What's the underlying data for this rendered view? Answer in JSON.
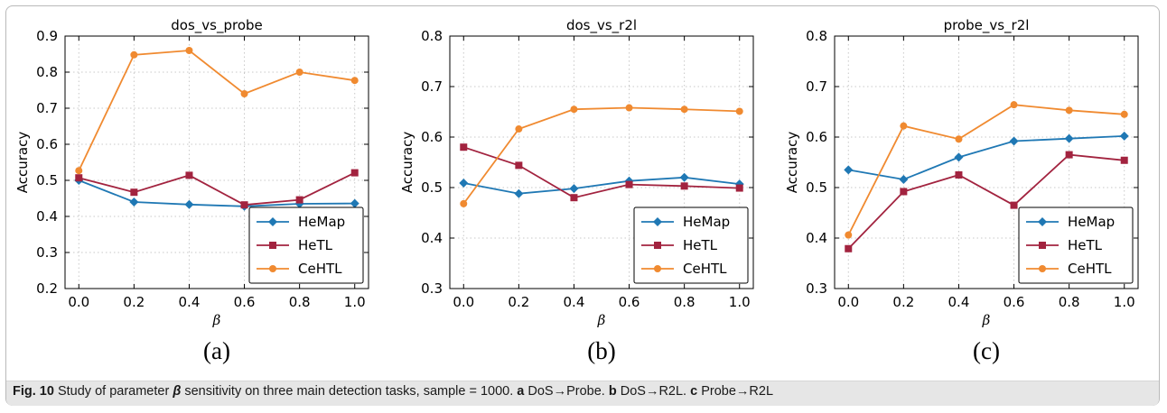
{
  "colors": {
    "HeMap": "#1f78b4",
    "HeTL": "#a2233f",
    "CeHTL": "#f08a30"
  },
  "caption": {
    "fig": "Fig. 10",
    "text_1": " Study of parameter ",
    "symbol": "β",
    "text_2": " sensitivity on three main detection tasks, sample = 1000. ",
    "a": "a",
    "a_text": " DoS→Probe. ",
    "b": "b",
    "b_text": " DoS→R2L. ",
    "c": "c",
    "c_text": " Probe→R2L"
  },
  "chart_data": [
    {
      "type": "line",
      "panel": "(a)",
      "title": "dos_vs_probe",
      "xlabel": "β",
      "ylabel": "Accuracy",
      "x": [
        0.0,
        0.2,
        0.4,
        0.6,
        0.8,
        1.0
      ],
      "xticks": [
        "0.0",
        "0.2",
        "0.4",
        "0.6",
        "0.8",
        "1.0"
      ],
      "yticks": [
        "0.2",
        "0.3",
        "0.4",
        "0.5",
        "0.6",
        "0.7",
        "0.8",
        "0.9"
      ],
      "xlim": [
        -0.05,
        1.05
      ],
      "ylim": [
        0.2,
        0.9
      ],
      "grid": true,
      "legend_position": "lower-right",
      "series": [
        {
          "name": "HeMap",
          "marker": "diamond",
          "values": [
            0.5,
            0.44,
            0.433,
            0.428,
            0.435,
            0.436
          ]
        },
        {
          "name": "HeTL",
          "marker": "square",
          "values": [
            0.507,
            0.467,
            0.514,
            0.432,
            0.446,
            0.521
          ]
        },
        {
          "name": "CeHTL",
          "marker": "circle",
          "values": [
            0.527,
            0.848,
            0.86,
            0.74,
            0.8,
            0.777
          ]
        }
      ]
    },
    {
      "type": "line",
      "panel": "(b)",
      "title": "dos_vs_r2l",
      "xlabel": "β",
      "ylabel": "Accuracy",
      "x": [
        0.0,
        0.2,
        0.4,
        0.6,
        0.8,
        1.0
      ],
      "xticks": [
        "0.0",
        "0.2",
        "0.4",
        "0.6",
        "0.8",
        "1.0"
      ],
      "yticks": [
        "0.3",
        "0.4",
        "0.5",
        "0.6",
        "0.7",
        "0.8"
      ],
      "xlim": [
        -0.05,
        1.05
      ],
      "ylim": [
        0.3,
        0.8
      ],
      "grid": true,
      "legend_position": "lower-right",
      "series": [
        {
          "name": "HeMap",
          "marker": "diamond",
          "values": [
            0.509,
            0.488,
            0.498,
            0.513,
            0.52,
            0.507
          ]
        },
        {
          "name": "HeTL",
          "marker": "square",
          "values": [
            0.58,
            0.544,
            0.48,
            0.506,
            0.503,
            0.499
          ]
        },
        {
          "name": "CeHTL",
          "marker": "circle",
          "values": [
            0.468,
            0.616,
            0.655,
            0.658,
            0.655,
            0.651
          ]
        }
      ]
    },
    {
      "type": "line",
      "panel": "(c)",
      "title": "probe_vs_r2l",
      "xlabel": "β",
      "ylabel": "Accuracy",
      "x": [
        0.0,
        0.2,
        0.4,
        0.6,
        0.8,
        1.0
      ],
      "xticks": [
        "0.0",
        "0.2",
        "0.4",
        "0.6",
        "0.8",
        "1.0"
      ],
      "yticks": [
        "0.3",
        "0.4",
        "0.5",
        "0.6",
        "0.7",
        "0.8"
      ],
      "xlim": [
        -0.05,
        1.05
      ],
      "ylim": [
        0.3,
        0.8
      ],
      "grid": true,
      "legend_position": "lower-right",
      "series": [
        {
          "name": "HeMap",
          "marker": "diamond",
          "values": [
            0.535,
            0.516,
            0.56,
            0.592,
            0.597,
            0.602
          ]
        },
        {
          "name": "HeTL",
          "marker": "square",
          "values": [
            0.379,
            0.492,
            0.525,
            0.465,
            0.565,
            0.554
          ]
        },
        {
          "name": "CeHTL",
          "marker": "circle",
          "values": [
            0.406,
            0.622,
            0.596,
            0.664,
            0.653,
            0.645
          ]
        }
      ]
    }
  ]
}
